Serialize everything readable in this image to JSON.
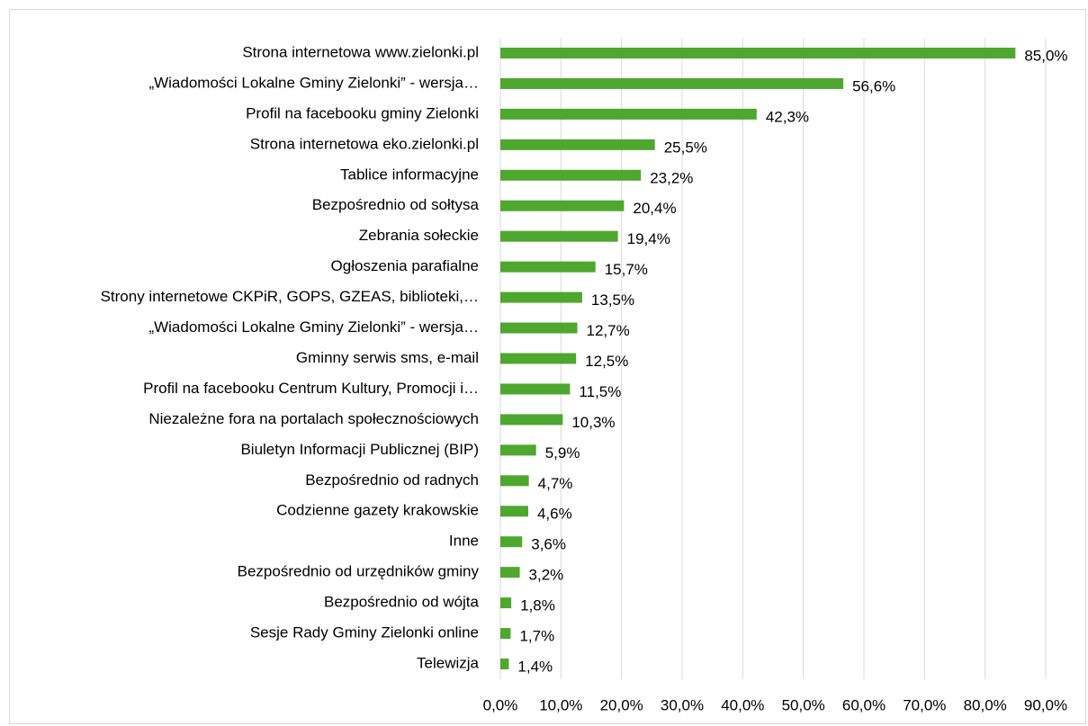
{
  "chart_data": {
    "type": "bar",
    "orientation": "horizontal",
    "color": "#4ea72e",
    "grid": true,
    "categories": [
      "Strona internetowa www.zielonki.pl",
      "„Wiadomości Lokalne Gminy Zielonki” - wersja…",
      "Profil na facebooku gminy Zielonki",
      "Strona internetowa eko.zielonki.pl",
      "Tablice informacyjne",
      "Bezpośrednio od sołtysa",
      "Zebrania sołeckie",
      "Ogłoszenia parafialne",
      "Strony internetowe CKPiR,  GOPS, GZEAS, biblioteki,…",
      "„Wiadomości Lokalne Gminy Zielonki” - wersja…",
      "Gminny serwis sms, e-mail",
      "Profil na facebooku Centrum Kultury, Promocji i…",
      "Niezależne fora na portalach społecznościowych",
      "Biuletyn Informacji Publicznej (BIP)",
      "Bezpośrednio od radnych",
      "Codzienne gazety krakowskie",
      "Inne",
      "Bezpośrednio od urzędników gminy",
      "Bezpośrednio od wójta",
      "Sesje Rady Gminy Zielonki online",
      "Telewizja"
    ],
    "values": [
      85.0,
      56.6,
      42.3,
      25.5,
      23.2,
      20.4,
      19.4,
      15.7,
      13.5,
      12.7,
      12.5,
      11.5,
      10.3,
      5.9,
      4.7,
      4.6,
      3.6,
      3.2,
      1.8,
      1.7,
      1.4
    ],
    "value_labels": [
      "85,0%",
      "56,6%",
      "42,3%",
      "25,5%",
      "23,2%",
      "20,4%",
      "19,4%",
      "15,7%",
      "13,5%",
      "12,7%",
      "12,5%",
      "11,5%",
      "10,3%",
      "5,9%",
      "4,7%",
      "4,6%",
      "3,6%",
      "3,2%",
      "1,8%",
      "1,7%",
      "1,4%"
    ],
    "xlim": [
      0,
      90
    ],
    "xticks": [
      {
        "value": 0,
        "label": "0,0%"
      },
      {
        "value": 10,
        "label": "10,0%"
      },
      {
        "value": 20,
        "label": "20,0%"
      },
      {
        "value": 30,
        "label": "30,0%"
      },
      {
        "value": 40,
        "label": "40,0%"
      },
      {
        "value": 50,
        "label": "50,0%"
      },
      {
        "value": 60,
        "label": "60,0%"
      },
      {
        "value": 70,
        "label": "70,0%"
      },
      {
        "value": 80,
        "label": "80,0%"
      },
      {
        "value": 90,
        "label": "90,0%"
      }
    ]
  }
}
